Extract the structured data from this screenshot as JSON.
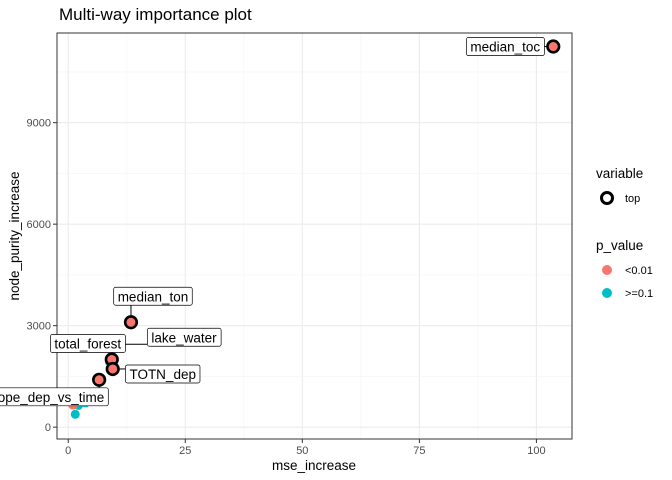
{
  "chart_data": {
    "type": "scatter",
    "title": "Multi-way importance plot",
    "xlabel": "mse_increase",
    "ylabel": "node_purity_increase",
    "xlim": [
      -2.4,
      107.6
    ],
    "ylim": [
      -350,
      11650
    ],
    "x_ticks": [
      0,
      25,
      50,
      75,
      100
    ],
    "y_ticks": [
      0,
      3000,
      6000,
      9000
    ],
    "grid": true,
    "legend": {
      "position": "right",
      "variable": {
        "title": "variable",
        "entries": [
          {
            "label": "top",
            "style": "ring"
          }
        ]
      },
      "p_value": {
        "title": "p_value",
        "entries": [
          {
            "label": "<0.01",
            "color": "#F8766D"
          },
          {
            "label": ">=0.1",
            "color": "#00BFC4"
          }
        ]
      }
    },
    "points": [
      {
        "x": 103.6,
        "y": 11250,
        "p_value": "<0.01",
        "top": true,
        "label": "median_toc"
      },
      {
        "x": 13.4,
        "y": 3100,
        "p_value": "<0.01",
        "top": true,
        "label": "median_ton"
      },
      {
        "x": 10.2,
        "y": 2450,
        "p_value": "<0.01",
        "top": true,
        "label": "lake_water"
      },
      {
        "x": 9.3,
        "y": 2000,
        "p_value": "<0.01",
        "top": true,
        "label": "total_forest"
      },
      {
        "x": 9.5,
        "y": 1720,
        "p_value": "<0.01",
        "top": true,
        "label": "TOTN_dep"
      },
      {
        "x": 6.6,
        "y": 1400,
        "p_value": "<0.01",
        "top": true,
        "label": "slope_dep_vs_time"
      },
      {
        "x": 8.8,
        "y": 1930,
        "p_value": ">=0.1",
        "top": false
      },
      {
        "x": 3.7,
        "y": 720,
        "p_value": ">=0.1",
        "top": false
      },
      {
        "x": 2.2,
        "y": 640,
        "p_value": ">=0.1",
        "top": false
      },
      {
        "x": 1.5,
        "y": 380,
        "p_value": ">=0.1",
        "top": false
      },
      {
        "x": 1.0,
        "y": 650,
        "p_value": "<0.01",
        "top": false
      }
    ]
  }
}
